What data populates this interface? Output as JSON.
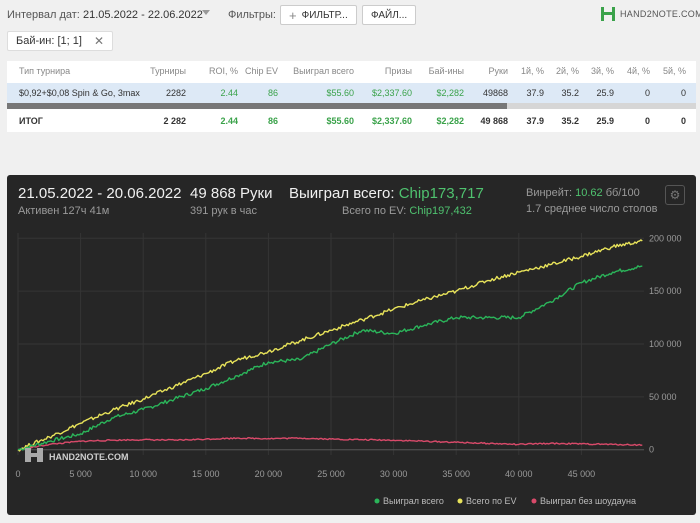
{
  "topbar": {
    "date_label": "Интервал дат:",
    "date_value": "21.05.2022 - 22.06.2022",
    "filters_label": "Фильтры:",
    "filter_button": "ФИЛЬТР...",
    "file_button": "ФАЙЛ...",
    "logo_text": "HAND2NOTE.COM"
  },
  "chip": {
    "label": "Бай-ин: [1; 1]",
    "close": "✕"
  },
  "table": {
    "headers": [
      "Тип турнира",
      "Турниры",
      "ROI, %",
      "Chip EV",
      "Выиграл всего",
      "Призы",
      "Бай-ины",
      "Руки",
      "1й, %",
      "2й, %",
      "3й, %",
      "4й, %",
      "5й, %"
    ],
    "row": [
      "$0,92+$0,08 Spin & Go, 3max",
      "2282",
      "2.44",
      "86",
      "$55.60",
      "$2,337.60",
      "$2,282",
      "49868",
      "37.9",
      "35.2",
      "25.9",
      "0",
      "0"
    ],
    "total": [
      "ИТОГ",
      "2 282",
      "2.44",
      "86",
      "$55.60",
      "$2,337.60",
      "$2,282",
      "49 868",
      "37.9",
      "35.2",
      "25.9",
      "0",
      "0"
    ]
  },
  "panel": {
    "date_range": "21.05.2022 - 20.06.2022",
    "active": "Активен 127ч 41м",
    "hands": "49 868 Руки",
    "hands_per_hour": "391 рук в час",
    "won_label": "Выиграл всего:",
    "won_value": "Chip173,717",
    "ev_label": "Всего по EV:",
    "ev_value": "Chip197,432",
    "winrate_label": "Винрейт:",
    "winrate_value": "10.62",
    "winrate_unit": "бб/100",
    "tables": "1.7 среднее число столов",
    "watermark": "HAND2NOTE.COM",
    "gear_icon": "gear-icon"
  },
  "colors": {
    "won": "#2bb55a",
    "ev": "#e8e35a",
    "no_showdown": "#d94a6a"
  },
  "chart_data": {
    "type": "line",
    "x_ticks": [
      "0",
      "5 000",
      "10 000",
      "15 000",
      "20 000",
      "25 000",
      "30 000",
      "35 000",
      "40 000",
      "45 000"
    ],
    "y_ticks": [
      "200 000",
      "150 000",
      "100 000",
      "50 000",
      "0"
    ],
    "xlim": [
      0,
      50000
    ],
    "ylim": [
      -5000,
      205000
    ],
    "legend_position": "bottom-right",
    "series": [
      {
        "name": "Выиграл всего",
        "color": "#2bb55a",
        "x": [
          0,
          2500,
          5000,
          7500,
          10000,
          12500,
          15000,
          17500,
          20000,
          22500,
          25000,
          27500,
          30000,
          32500,
          35000,
          37500,
          40000,
          42500,
          45000,
          47500,
          49868
        ],
        "y": [
          0,
          8000,
          15000,
          30000,
          38000,
          48000,
          58000,
          70000,
          83000,
          85000,
          100000,
          113000,
          110000,
          118000,
          125000,
          125000,
          125000,
          140000,
          158000,
          168000,
          173717
        ]
      },
      {
        "name": "Всего по EV",
        "color": "#e8e35a",
        "x": [
          0,
          2500,
          5000,
          7500,
          10000,
          12500,
          15000,
          17500,
          20000,
          22500,
          25000,
          27500,
          30000,
          32500,
          35000,
          37500,
          40000,
          42500,
          45000,
          47500,
          49868
        ],
        "y": [
          0,
          12000,
          25000,
          37000,
          48000,
          60000,
          72000,
          85000,
          93000,
          103000,
          113000,
          123000,
          133000,
          142000,
          150000,
          160000,
          168000,
          175000,
          183000,
          192000,
          197432
        ]
      },
      {
        "name": "Выиграл без шоудауна",
        "color": "#d94a6a",
        "x": [
          0,
          2500,
          5000,
          7500,
          10000,
          12500,
          15000,
          17500,
          20000,
          22500,
          25000,
          27500,
          30000,
          32500,
          35000,
          37500,
          40000,
          42500,
          45000,
          47500,
          49868
        ],
        "y": [
          0,
          5000,
          8000,
          9000,
          9500,
          9000,
          10000,
          11000,
          10500,
          11000,
          10000,
          9500,
          9000,
          8000,
          7000,
          6000,
          5000,
          6000,
          5500,
          5000,
          4500
        ]
      }
    ]
  }
}
